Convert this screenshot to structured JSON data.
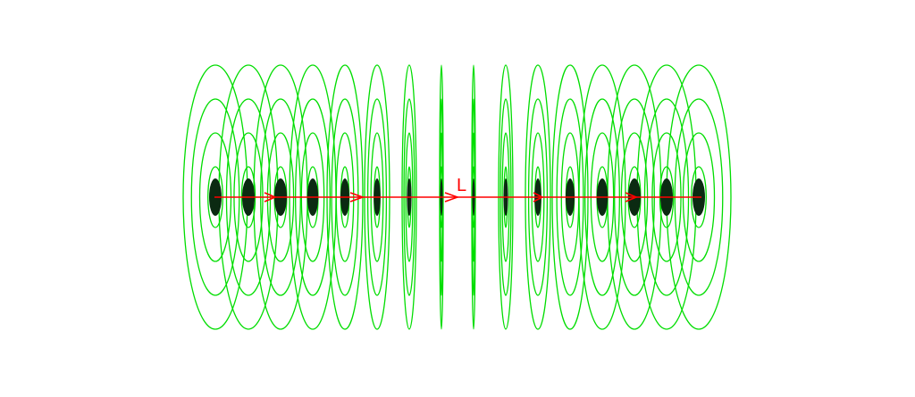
{
  "diagram": {
    "label": "L",
    "colors": {
      "field_lines": "#00dd00",
      "wire_cross_section": "#0b2a12",
      "axis": "#ff0000",
      "background": "#ffffff"
    },
    "wire_count": 16,
    "loops_per_wire": 4
  }
}
